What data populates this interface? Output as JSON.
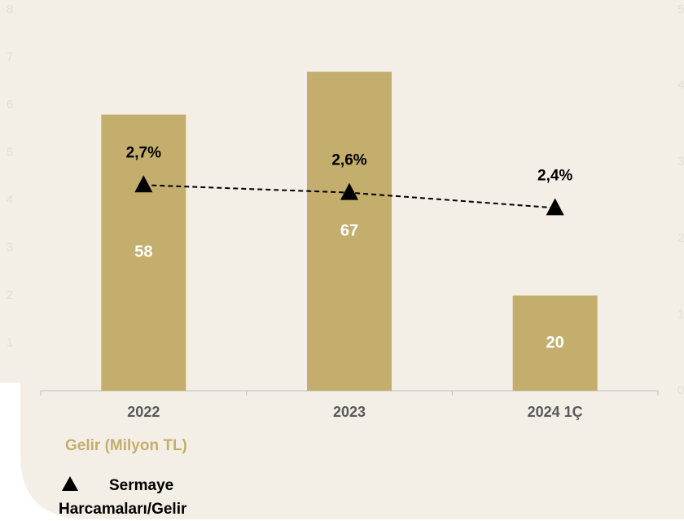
{
  "chart_data": {
    "type": "bar_line",
    "categories": [
      "2022",
      "2023",
      "2024 1Ç"
    ],
    "series": [
      {
        "name": "Gelir (Milyon TL)",
        "type": "bar",
        "color": "#c4ae6e",
        "values": [
          58,
          67,
          20
        ]
      },
      {
        "name": "Sermaye Harcamaları/Gelir",
        "type": "line",
        "axis": "y2",
        "color": "#000000",
        "values": [
          2.7,
          2.6,
          2.4
        ],
        "value_labels": [
          "2,7%",
          "2,6%",
          "2,4%"
        ]
      }
    ],
    "ylim": [
      0,
      80
    ],
    "yticks": [
      {
        "value": 10,
        "label": "1"
      },
      {
        "value": 20,
        "label": "2"
      },
      {
        "value": 30,
        "label": "3"
      },
      {
        "value": 40,
        "label": "4"
      },
      {
        "value": 50,
        "label": "5"
      },
      {
        "value": 60,
        "label": "6"
      },
      {
        "value": 70,
        "label": "7"
      },
      {
        "value": 80,
        "label": "8"
      }
    ],
    "y2lim": [
      0,
      5
    ],
    "y2ticks": [
      0,
      1,
      2,
      3,
      4,
      5
    ]
  }
}
